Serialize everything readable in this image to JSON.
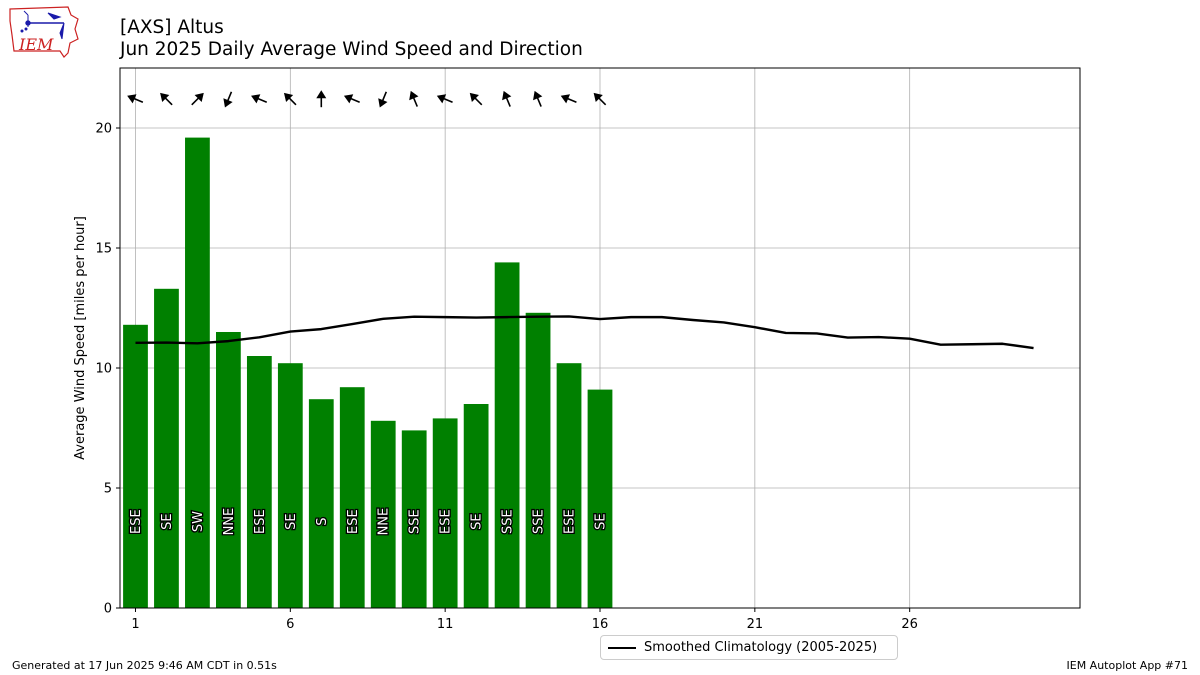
{
  "header": {
    "title_line1": "[AXS] Altus",
    "title_line2": "Jun 2025 Daily Average Wind Speed and Direction",
    "logo_text": "IEM"
  },
  "footer": {
    "left": "Generated at 17 Jun 2025 9:46 AM CDT in 0.51s",
    "right": "IEM Autoplot App #71"
  },
  "colors": {
    "bar": "#008000",
    "climatology": "#000000",
    "grid": "#b0b0b0",
    "logo_red": "#cc2222",
    "logo_blue": "#1a1aaa"
  },
  "legend": {
    "climatology_label": "Smoothed Climatology (2005-2025)"
  },
  "chart_data": {
    "type": "bar",
    "ylabel": "Average Wind Speed [miles per hour]",
    "xlabel": "",
    "xlim": [
      0.5,
      31.5
    ],
    "ylim": [
      0,
      22.5
    ],
    "xticks": [
      1,
      6,
      11,
      16,
      21,
      26
    ],
    "yticks": [
      0,
      5,
      10,
      15,
      20
    ],
    "grid": true,
    "legend_position": "bottom-center",
    "series": [
      {
        "kind": "bar",
        "days": [
          1,
          2,
          3,
          4,
          5,
          6,
          7,
          8,
          9,
          10,
          11,
          12,
          13,
          14,
          15,
          16
        ],
        "values": [
          11.8,
          13.3,
          19.6,
          11.5,
          10.5,
          10.2,
          8.7,
          9.2,
          7.8,
          7.4,
          7.9,
          8.5,
          14.4,
          12.3,
          10.2,
          9.1
        ],
        "direction_labels": [
          "ESE",
          "SE",
          "SW",
          "NNE",
          "ESE",
          "SE",
          "S",
          "ESE",
          "NNE",
          "SSE",
          "ESE",
          "SE",
          "SSE",
          "SSE",
          "ESE",
          "SE"
        ],
        "arrow_directions_deg": [
          112.5,
          135,
          225,
          22.5,
          112.5,
          135,
          180,
          112.5,
          22.5,
          157.5,
          112.5,
          135,
          157.5,
          157.5,
          112.5,
          135
        ]
      },
      {
        "kind": "line",
        "name": "Smoothed Climatology (2005-2025)",
        "days": [
          1,
          2,
          3,
          4,
          5,
          6,
          7,
          8,
          9,
          10,
          11,
          12,
          13,
          14,
          15,
          16,
          17,
          18,
          19,
          20,
          21,
          22,
          23,
          24,
          25,
          26,
          27,
          28,
          29,
          30
        ],
        "values": [
          11.05,
          11.06,
          11.03,
          11.12,
          11.28,
          11.52,
          11.62,
          11.83,
          12.05,
          12.14,
          12.12,
          12.1,
          12.12,
          12.14,
          12.15,
          12.04,
          12.12,
          12.12,
          12.0,
          11.9,
          11.7,
          11.46,
          11.44,
          11.27,
          11.29,
          11.22,
          10.97,
          10.99,
          11.01,
          10.83
        ]
      }
    ]
  }
}
